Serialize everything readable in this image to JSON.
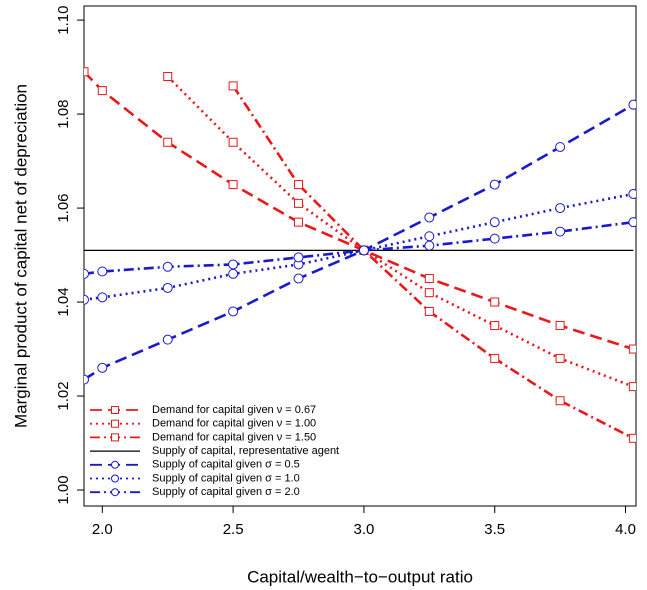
{
  "chart_data": {
    "type": "line",
    "x_label": "Capital/wealth−to−output ratio",
    "y_label": "Marginal product of capital net of depreciation",
    "x": [
      1.93,
      2.0,
      2.25,
      2.5,
      2.75,
      3.0,
      3.25,
      3.5,
      3.75,
      4.03
    ],
    "series": [
      {
        "name": "Demand for capital given ν = 0.67",
        "color": "#e8191b",
        "dash": "12,6",
        "marker": "square",
        "values": [
          1.089,
          1.085,
          1.074,
          1.065,
          1.057,
          1.051,
          1.045,
          1.04,
          1.035,
          1.03
        ]
      },
      {
        "name": "Demand for capital given ν = 1.00",
        "color": "#e8191b",
        "dash": "2,4",
        "marker": "square",
        "values": [
          null,
          null,
          1.088,
          1.074,
          1.061,
          1.051,
          1.042,
          1.035,
          1.028,
          1.022
        ]
      },
      {
        "name": "Demand for capital given ν = 1.50",
        "color": "#e8191b",
        "dash": "10,4,2,4",
        "marker": "square",
        "values": [
          null,
          null,
          null,
          1.086,
          1.065,
          1.051,
          1.038,
          1.028,
          1.019,
          1.011
        ]
      },
      {
        "name": "Supply of capital, representative agent",
        "color": "#000000",
        "dash": "none",
        "marker": "none",
        "values": [
          1.051,
          1.051,
          1.051,
          1.051,
          1.051,
          1.051,
          1.051,
          1.051,
          1.051,
          1.051
        ]
      },
      {
        "name": "Supply of capital given σ = 0.5",
        "color": "#1a1acc",
        "dash": "12,6",
        "marker": "circle",
        "values": [
          1.0235,
          1.026,
          1.032,
          1.038,
          1.045,
          1.051,
          1.058,
          1.065,
          1.073,
          1.082
        ]
      },
      {
        "name": "Supply of capital given σ = 1.0",
        "color": "#1a1acc",
        "dash": "2,4",
        "marker": "circle",
        "values": [
          1.0405,
          1.041,
          1.043,
          1.046,
          1.048,
          1.051,
          1.054,
          1.057,
          1.06,
          1.063
        ]
      },
      {
        "name": "Supply of capital given σ = 2.0",
        "color": "#1a1acc",
        "dash": "10,4,2,4",
        "marker": "circle",
        "values": [
          1.046,
          1.0465,
          1.0475,
          1.048,
          1.0495,
          1.051,
          1.052,
          1.0535,
          1.055,
          1.057
        ]
      }
    ],
    "xlim": [
      1.93,
      4.04
    ],
    "ylim": [
      0.9966,
      1.103
    ],
    "xticks": [
      {
        "value": 2.0,
        "label": "2.0"
      },
      {
        "value": 2.5,
        "label": "2.5"
      },
      {
        "value": 3.0,
        "label": "3.0"
      },
      {
        "value": 3.5,
        "label": "3.5"
      },
      {
        "value": 4.0,
        "label": "4.0"
      }
    ],
    "yticks": [
      {
        "value": 1.0,
        "label": "1.00"
      },
      {
        "value": 1.02,
        "label": "1.02"
      },
      {
        "value": 1.04,
        "label": "1.04"
      },
      {
        "value": 1.06,
        "label": "1.06"
      },
      {
        "value": 1.08,
        "label": "1.08"
      },
      {
        "value": 1.1,
        "label": "1.10"
      }
    ],
    "legend": "bottom-left"
  }
}
